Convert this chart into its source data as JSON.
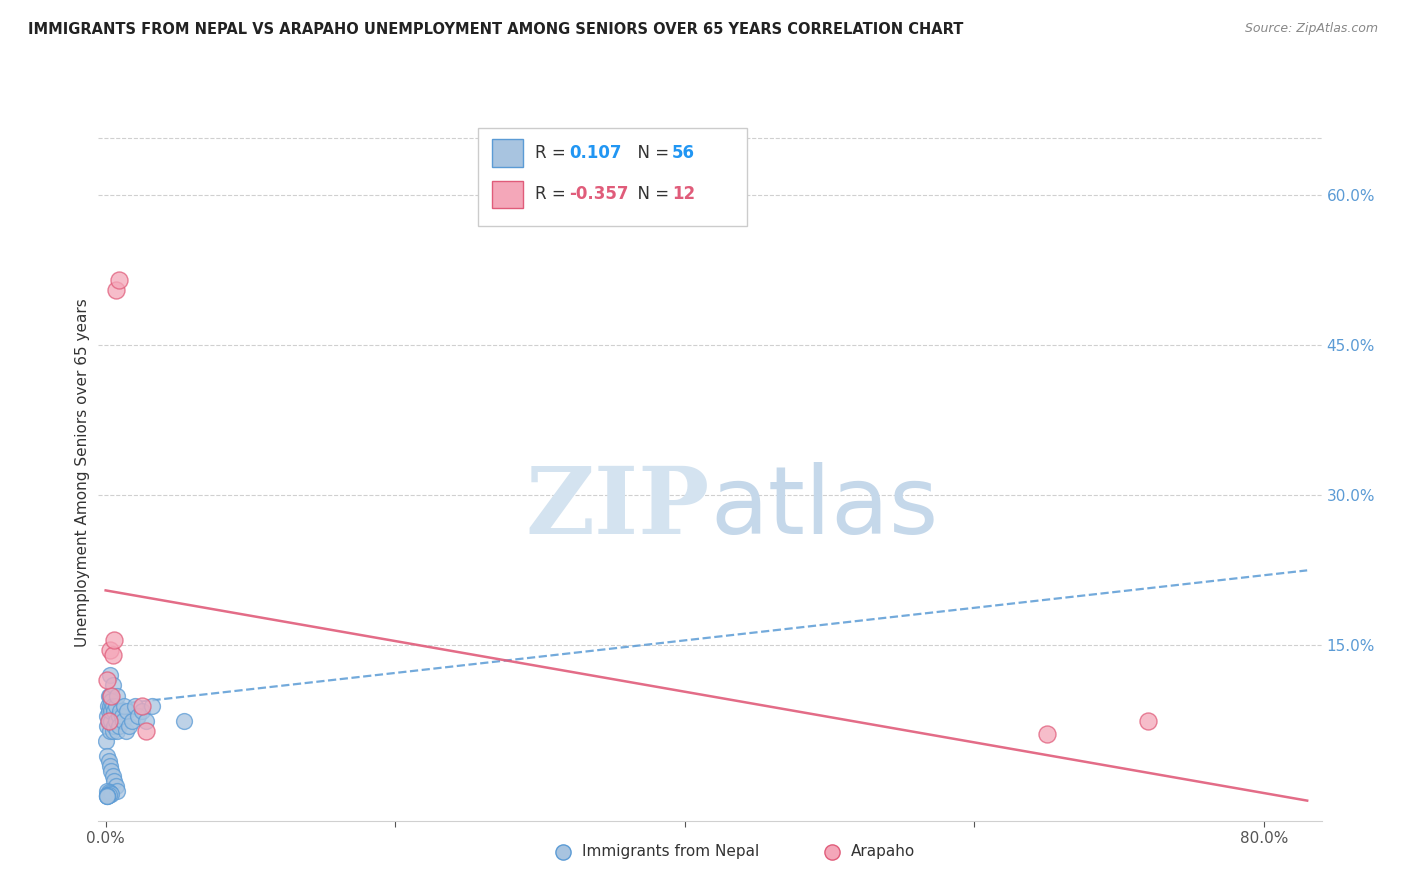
{
  "title": "IMMIGRANTS FROM NEPAL VS ARAPAHO UNEMPLOYMENT AMONG SENIORS OVER 65 YEARS CORRELATION CHART",
  "source": "Source: ZipAtlas.com",
  "ylabel": "Unemployment Among Seniors over 65 years",
  "blue_R": 0.107,
  "blue_N": 56,
  "pink_R": -0.357,
  "pink_N": 12,
  "blue_color": "#a8c4e0",
  "blue_edge_color": "#5b9bd5",
  "pink_color": "#f4a7b9",
  "pink_edge_color": "#e05c7a",
  "blue_trend_color": "#5b9bd5",
  "pink_trend_color": "#e05c7a",
  "right_tick_color": "#5b9bd5",
  "watermark_zip_color": "#d4e3f0",
  "watermark_atlas_color": "#c5d8ea",
  "background_color": "#ffffff",
  "xlim": [
    -0.005,
    0.84
  ],
  "ylim": [
    -0.025,
    0.67
  ],
  "blue_trend_x0": 0.0,
  "blue_trend_y0": 0.09,
  "blue_trend_x1": 0.83,
  "blue_trend_y1": 0.225,
  "pink_trend_x0": 0.0,
  "pink_trend_y0": 0.205,
  "pink_trend_x1": 0.83,
  "pink_trend_y1": -0.005,
  "blue_scatter_x": [
    0.0005,
    0.001,
    0.001,
    0.0015,
    0.002,
    0.002,
    0.002,
    0.003,
    0.003,
    0.003,
    0.003,
    0.004,
    0.004,
    0.004,
    0.005,
    0.005,
    0.005,
    0.006,
    0.006,
    0.007,
    0.007,
    0.008,
    0.008,
    0.009,
    0.009,
    0.01,
    0.011,
    0.012,
    0.013,
    0.014,
    0.015,
    0.016,
    0.018,
    0.02,
    0.022,
    0.025,
    0.028,
    0.032,
    0.001,
    0.002,
    0.003,
    0.004,
    0.005,
    0.006,
    0.007,
    0.008,
    0.001,
    0.002,
    0.003,
    0.004,
    0.001,
    0.002,
    0.001,
    0.001,
    0.054,
    0.001
  ],
  "blue_scatter_y": [
    0.055,
    0.08,
    0.07,
    0.09,
    0.1,
    0.075,
    0.085,
    0.12,
    0.09,
    0.1,
    0.065,
    0.075,
    0.085,
    0.095,
    0.11,
    0.065,
    0.09,
    0.07,
    0.085,
    0.075,
    0.09,
    0.065,
    0.1,
    0.08,
    0.07,
    0.085,
    0.08,
    0.075,
    0.09,
    0.065,
    0.085,
    0.07,
    0.075,
    0.09,
    0.08,
    0.085,
    0.075,
    0.09,
    0.04,
    0.035,
    0.03,
    0.025,
    0.02,
    0.015,
    0.01,
    0.005,
    0.005,
    0.004,
    0.003,
    0.002,
    0.001,
    0.001,
    0.0,
    0.0,
    0.075,
    0.0
  ],
  "pink_scatter_x": [
    0.007,
    0.009,
    0.003,
    0.005,
    0.006,
    0.004,
    0.025,
    0.028,
    0.001,
    0.65,
    0.72,
    0.002
  ],
  "pink_scatter_y": [
    0.505,
    0.515,
    0.145,
    0.14,
    0.155,
    0.1,
    0.09,
    0.065,
    0.115,
    0.062,
    0.075,
    0.075
  ]
}
